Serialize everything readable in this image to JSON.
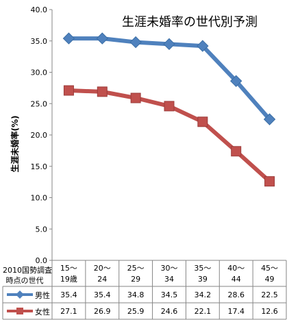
{
  "chart_data": {
    "type": "line",
    "title": "生涯未婚率の世代別予測",
    "ylabel": "生涯未婚率(%)",
    "ylim": [
      0,
      40
    ],
    "yticks": [
      "0.0",
      "5.0",
      "10.0",
      "15.0",
      "20.0",
      "25.0",
      "30.0",
      "35.0",
      "40.0"
    ],
    "table_header": [
      "2010国勢調査",
      "時点の世代"
    ],
    "categories": [
      [
        "15〜",
        "19歳"
      ],
      [
        "20〜",
        "24"
      ],
      [
        "25〜",
        "29"
      ],
      [
        "30〜",
        "34"
      ],
      [
        "35〜",
        "39"
      ],
      [
        "40〜",
        "44"
      ],
      [
        "45〜",
        "49"
      ]
    ],
    "series": [
      {
        "name": "男性",
        "color": "#4f81bd",
        "marker": "diamond",
        "values": [
          35.4,
          35.4,
          34.8,
          34.5,
          34.2,
          28.6,
          22.5
        ],
        "labels": [
          "35.4",
          "35.4",
          "34.8",
          "34.5",
          "34.2",
          "28.6",
          "22.5"
        ]
      },
      {
        "name": "女性",
        "color": "#c0504d",
        "marker": "square",
        "values": [
          27.1,
          26.9,
          25.9,
          24.6,
          22.1,
          17.4,
          12.6
        ],
        "labels": [
          "27.1",
          "26.9",
          "25.9",
          "24.6",
          "22.1",
          "17.4",
          "12.6"
        ]
      }
    ],
    "grid": false,
    "legend": "table"
  }
}
